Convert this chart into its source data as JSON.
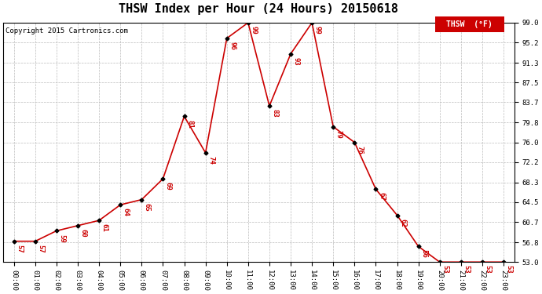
{
  "title": "THSW Index per Hour (24 Hours) 20150618",
  "copyright": "Copyright 2015 Cartronics.com",
  "legend_label": "THSW  (°F)",
  "hours": [
    0,
    1,
    2,
    3,
    4,
    5,
    6,
    7,
    8,
    9,
    10,
    11,
    12,
    13,
    14,
    15,
    16,
    17,
    18,
    19,
    20,
    21,
    22,
    23
  ],
  "values": [
    57,
    57,
    59,
    60,
    61,
    64,
    65,
    69,
    81,
    74,
    96,
    99,
    83,
    93,
    99,
    79,
    76,
    67,
    62,
    56,
    53,
    53,
    53,
    53
  ],
  "xlabels": [
    "00:00",
    "01:00",
    "02:00",
    "03:00",
    "04:00",
    "05:00",
    "06:00",
    "07:00",
    "08:00",
    "09:00",
    "10:00",
    "11:00",
    "12:00",
    "13:00",
    "14:00",
    "15:00",
    "16:00",
    "17:00",
    "18:00",
    "19:00",
    "20:00",
    "21:00",
    "22:00",
    "23:00"
  ],
  "ylim": [
    53.0,
    99.0
  ],
  "yticks": [
    53.0,
    56.8,
    60.7,
    64.5,
    68.3,
    72.2,
    76.0,
    79.8,
    83.7,
    87.5,
    91.3,
    95.2,
    99.0
  ],
  "line_color": "#cc0000",
  "marker_color": "#000000",
  "label_color": "#cc0000",
  "grid_color": "#bbbbbb",
  "bg_color": "#ffffff",
  "title_fontsize": 11,
  "label_fontsize": 6.5,
  "tick_fontsize": 6.5,
  "copyright_fontsize": 6.5,
  "legend_fontsize": 7
}
